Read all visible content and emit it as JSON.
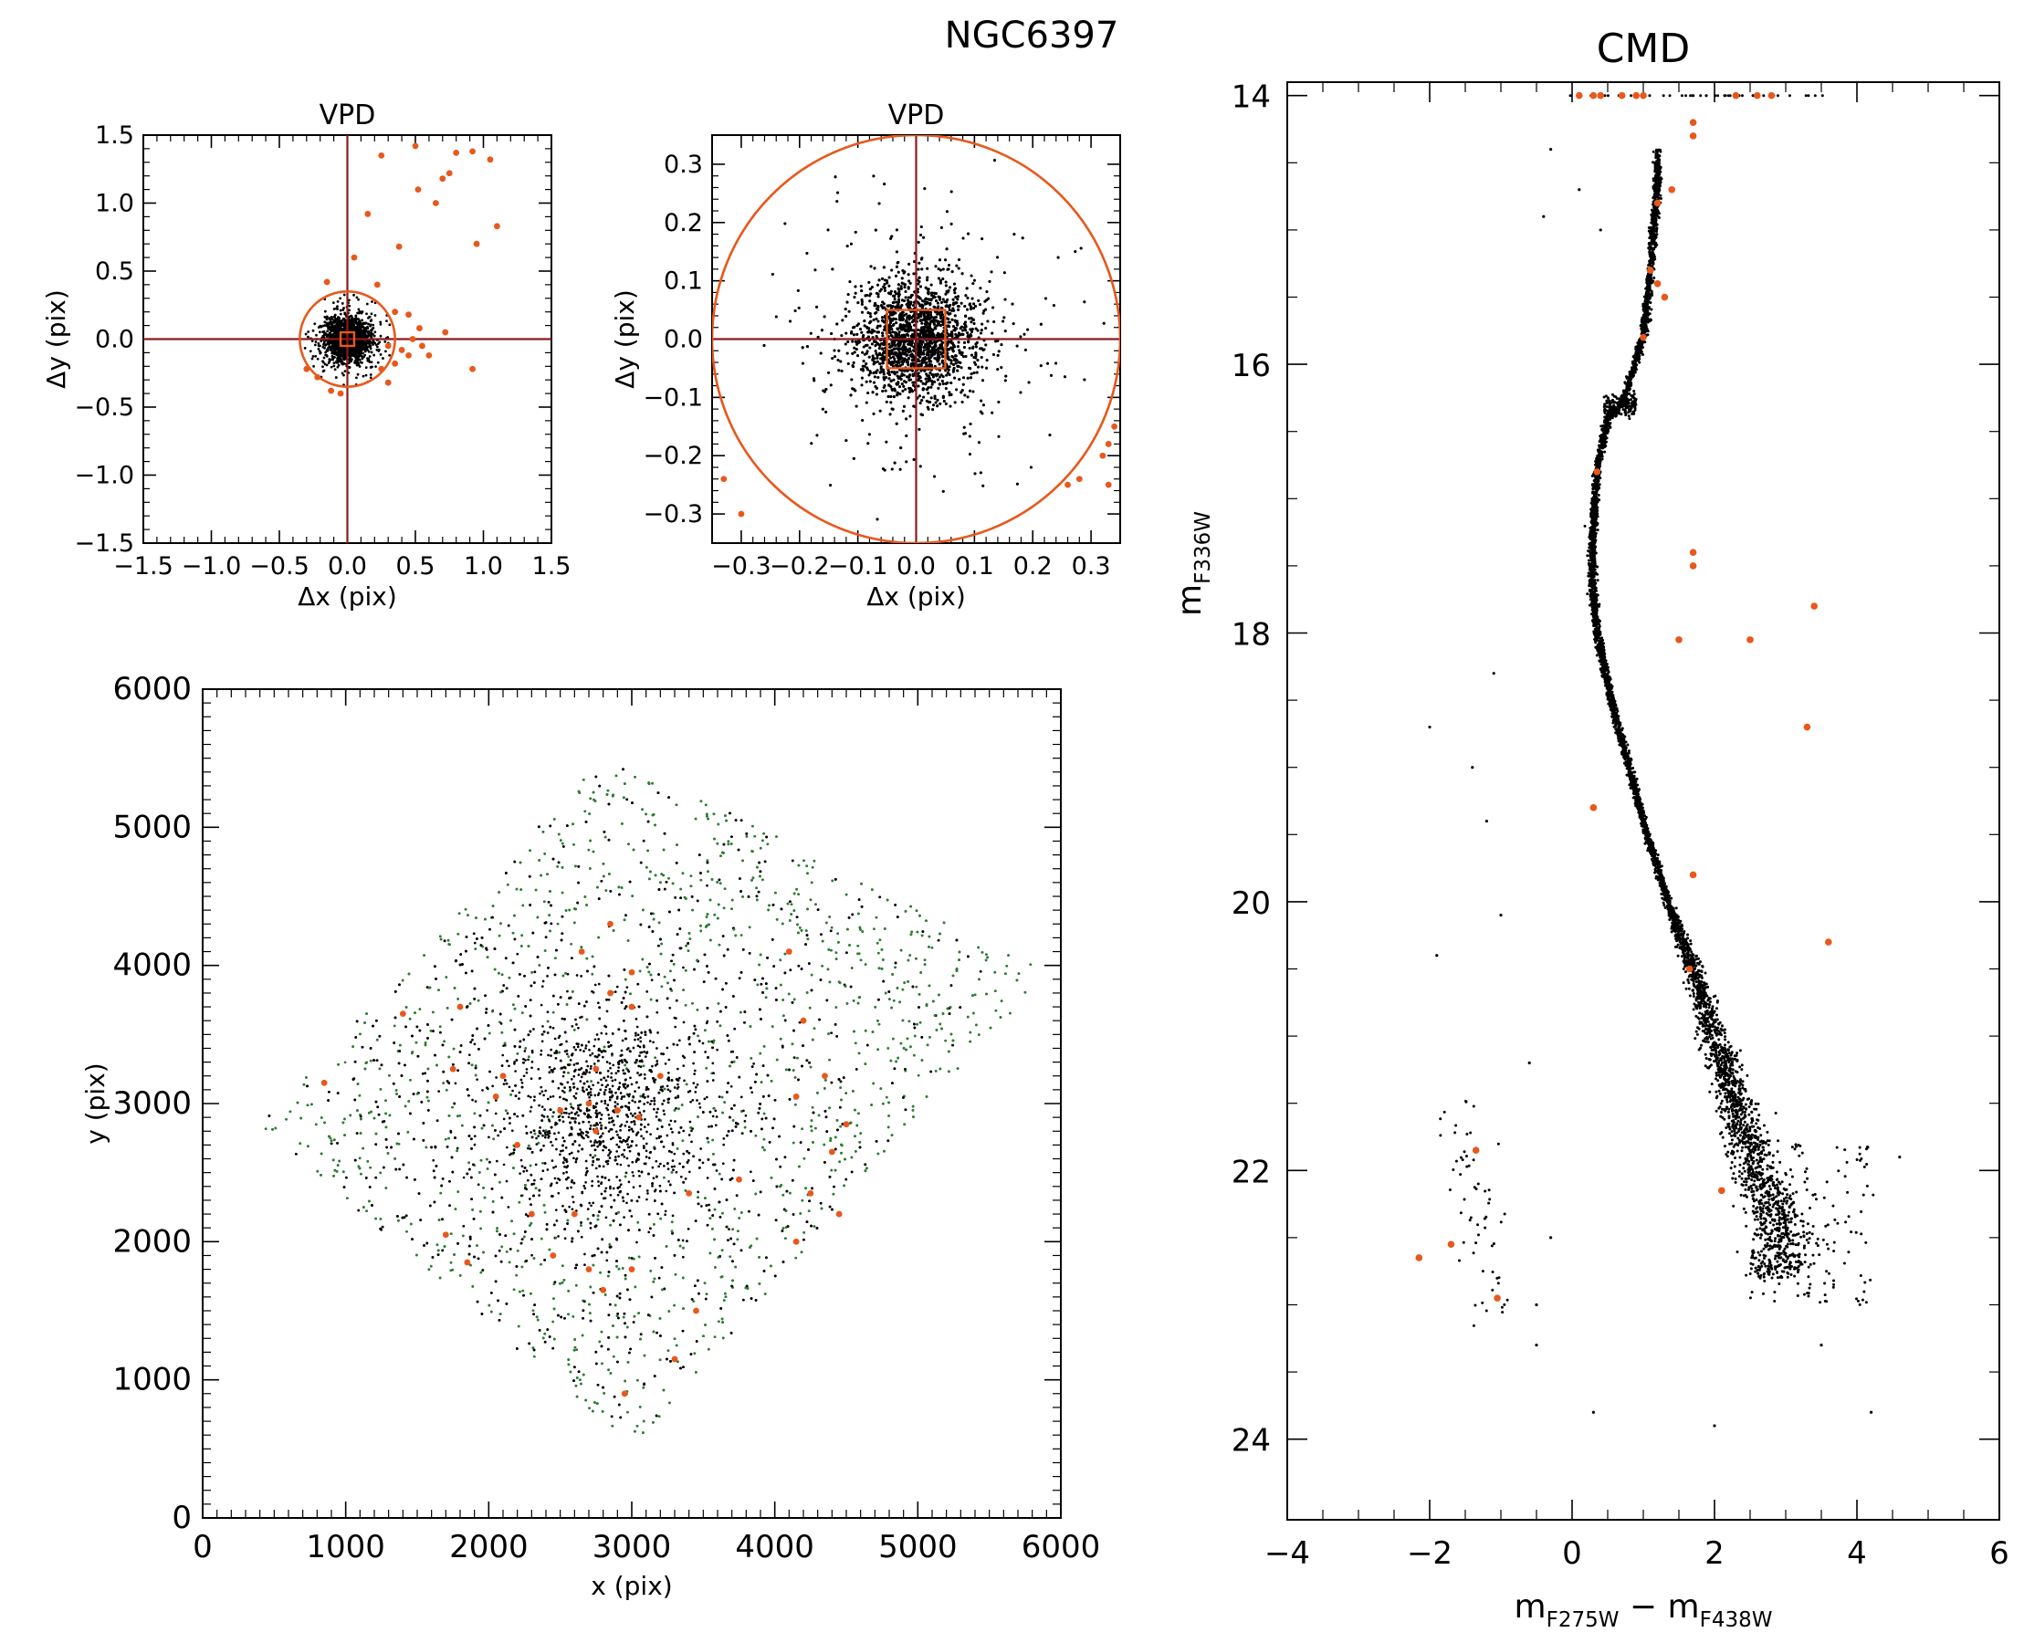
{
  "figure_title": "NGC6397",
  "colors": {
    "field": "#e8581c",
    "frame": "#000000",
    "cross": "#8b1a1a",
    "member": "#000000",
    "member_green": "#2e7d32"
  },
  "chart_data": [
    {
      "id": "vpd_wide",
      "type": "scatter",
      "title": "VPD",
      "xlabel": "Δx (pix)",
      "ylabel": "Δy (pix)",
      "xlim": [
        -1.5,
        1.5
      ],
      "ylim": [
        -1.5,
        1.5
      ],
      "xticks": [
        -1.5,
        -1.0,
        -0.5,
        0.0,
        0.5,
        1.0,
        1.5
      ],
      "yticks": [
        -1.5,
        -1.0,
        -0.5,
        0.0,
        0.5,
        1.0,
        1.5
      ],
      "xtick_labels": [
        "−1.5",
        "−1.0",
        "−0.5",
        "0.0",
        "0.5",
        "1.0",
        "1.5"
      ],
      "ytick_labels": [
        "−1.5",
        "−1.0",
        "−0.5",
        "0.0",
        "0.5",
        "1.0",
        "1.5"
      ],
      "selection_circle_radius": 0.35,
      "inner_box_halfwidth": 0.05,
      "cluster_core_sigma": 0.08,
      "field_stars": [
        [
          0.25,
          1.35
        ],
        [
          0.5,
          1.42
        ],
        [
          0.8,
          1.37
        ],
        [
          0.92,
          1.38
        ],
        [
          1.05,
          1.32
        ],
        [
          0.75,
          1.22
        ],
        [
          0.7,
          1.18
        ],
        [
          0.52,
          1.1
        ],
        [
          0.65,
          1.0
        ],
        [
          0.15,
          0.92
        ],
        [
          0.38,
          0.68
        ],
        [
          0.95,
          0.7
        ],
        [
          1.1,
          0.83
        ],
        [
          0.05,
          0.6
        ],
        [
          0.22,
          0.4
        ],
        [
          -0.15,
          0.42
        ],
        [
          0.35,
          0.2
        ],
        [
          0.45,
          0.18
        ],
        [
          0.53,
          0.08
        ],
        [
          0.72,
          0.05
        ],
        [
          0.48,
          0.0
        ],
        [
          0.55,
          -0.05
        ],
        [
          0.4,
          -0.08
        ],
        [
          0.3,
          -0.05
        ],
        [
          0.45,
          -0.12
        ],
        [
          0.35,
          -0.18
        ],
        [
          0.25,
          -0.22
        ],
        [
          0.6,
          -0.12
        ],
        [
          0.92,
          -0.22
        ],
        [
          -0.22,
          -0.28
        ],
        [
          -0.3,
          -0.22
        ],
        [
          -0.12,
          -0.38
        ],
        [
          -0.05,
          -0.4
        ],
        [
          0.3,
          -0.32
        ]
      ]
    },
    {
      "id": "vpd_zoom",
      "type": "scatter",
      "title": "VPD",
      "xlabel": "Δx (pix)",
      "ylabel": "Δy (pix)",
      "xlim": [
        -0.35,
        0.35
      ],
      "ylim": [
        -0.35,
        0.35
      ],
      "xticks": [
        -0.3,
        -0.2,
        -0.1,
        0.0,
        0.1,
        0.2,
        0.3
      ],
      "yticks": [
        -0.3,
        -0.2,
        -0.1,
        0.0,
        0.1,
        0.2,
        0.3
      ],
      "xtick_labels": [
        "−0.3",
        "−0.2",
        "−0.1",
        "0.0",
        "0.1",
        "0.2",
        "0.3"
      ],
      "ytick_labels": [
        "−0.3",
        "−0.2",
        "−0.1",
        "0.0",
        "0.1",
        "0.2",
        "0.3"
      ],
      "selection_circle_radius": 0.35,
      "inner_box_halfwidth": 0.05,
      "cluster_core_sigma": 0.05,
      "field_stars": [
        [
          -0.33,
          -0.24
        ],
        [
          -0.3,
          -0.3
        ],
        [
          0.26,
          -0.25
        ],
        [
          0.28,
          -0.24
        ],
        [
          0.33,
          -0.25
        ],
        [
          0.33,
          -0.18
        ],
        [
          0.34,
          -0.15
        ],
        [
          0.32,
          -0.2
        ]
      ]
    },
    {
      "id": "xy_map",
      "type": "scatter",
      "xlabel": "x (pix)",
      "ylabel": "y (pix)",
      "xlim": [
        0,
        6000
      ],
      "ylim": [
        0,
        6000
      ],
      "xticks": [
        0,
        1000,
        2000,
        3000,
        4000,
        5000,
        6000
      ],
      "yticks": [
        0,
        1000,
        2000,
        3000,
        4000,
        5000,
        6000
      ],
      "xtick_labels": [
        "0",
        "1000",
        "2000",
        "3000",
        "4000",
        "5000",
        "6000"
      ],
      "ytick_labels": [
        "0",
        "1000",
        "2000",
        "3000",
        "4000",
        "5000",
        "6000"
      ],
      "footprint": [
        [
          400,
          2850
        ],
        [
          2800,
          5500
        ],
        [
          3500,
          5200
        ],
        [
          5900,
          3950
        ],
        [
          3000,
          500
        ]
      ],
      "cluster_center": [
        2800,
        2950
      ],
      "field_stars": [
        [
          2650,
          4100
        ],
        [
          2850,
          4300
        ],
        [
          3000,
          3950
        ],
        [
          4100,
          4100
        ],
        [
          1400,
          3650
        ],
        [
          1800,
          3700
        ],
        [
          2850,
          3800
        ],
        [
          3000,
          3700
        ],
        [
          4200,
          3600
        ],
        [
          850,
          3150
        ],
        [
          1750,
          3250
        ],
        [
          2100,
          3200
        ],
        [
          2750,
          3250
        ],
        [
          3200,
          3200
        ],
        [
          4350,
          3200
        ],
        [
          2050,
          3050
        ],
        [
          2500,
          2950
        ],
        [
          2700,
          3000
        ],
        [
          2900,
          2950
        ],
        [
          3050,
          2900
        ],
        [
          4150,
          3050
        ],
        [
          4500,
          2850
        ],
        [
          2200,
          2700
        ],
        [
          2750,
          2800
        ],
        [
          4400,
          2650
        ],
        [
          3750,
          2450
        ],
        [
          3400,
          2350
        ],
        [
          4250,
          2350
        ],
        [
          2300,
          2200
        ],
        [
          2600,
          2200
        ],
        [
          4450,
          2200
        ],
        [
          1700,
          2050
        ],
        [
          1850,
          1850
        ],
        [
          4150,
          2000
        ],
        [
          2450,
          1900
        ],
        [
          2700,
          1800
        ],
        [
          3000,
          1800
        ],
        [
          2800,
          1650
        ],
        [
          3450,
          1500
        ],
        [
          2950,
          900
        ],
        [
          3300,
          1150
        ]
      ]
    },
    {
      "id": "cmd",
      "type": "scatter",
      "title": "CMD",
      "xlabel_main": "m",
      "xlabel_sub1": "F275W",
      "xlabel_mid": " − m",
      "xlabel_sub2": "F438W",
      "ylabel_main": "m",
      "ylabel_sub": "F336W",
      "xlim": [
        -4,
        6
      ],
      "ylim": [
        24.6,
        13.9
      ],
      "xticks": [
        -4,
        -2,
        0,
        2,
        4,
        6
      ],
      "yticks": [
        14,
        16,
        18,
        20,
        22,
        24
      ],
      "xtick_labels": [
        "−4",
        "−2",
        "0",
        "2",
        "4",
        "6"
      ],
      "ytick_labels": [
        "14",
        "16",
        "18",
        "20",
        "22",
        "24"
      ],
      "ridge_line": [
        [
          1.2,
          14.6
        ],
        [
          1.1,
          15.3
        ],
        [
          1.0,
          15.8
        ],
        [
          0.7,
          16.3
        ],
        [
          0.5,
          16.4
        ],
        [
          0.35,
          16.8
        ],
        [
          0.3,
          17.2
        ],
        [
          0.28,
          17.6
        ],
        [
          0.35,
          18.0
        ],
        [
          0.55,
          18.5
        ],
        [
          0.8,
          19.0
        ],
        [
          1.05,
          19.5
        ],
        [
          1.35,
          20.0
        ],
        [
          1.7,
          20.5
        ],
        [
          2.0,
          21.0
        ],
        [
          2.3,
          21.5
        ],
        [
          2.6,
          22.0
        ],
        [
          2.9,
          22.4
        ]
      ],
      "field_stars": [
        [
          0.1,
          14.0
        ],
        [
          0.3,
          14.0
        ],
        [
          0.4,
          14.0
        ],
        [
          0.7,
          14.0
        ],
        [
          0.9,
          14.0
        ],
        [
          1.0,
          14.0
        ],
        [
          2.3,
          14.0
        ],
        [
          2.6,
          14.0
        ],
        [
          2.8,
          14.0
        ],
        [
          1.7,
          14.2
        ],
        [
          1.7,
          14.3
        ],
        [
          1.4,
          14.7
        ],
        [
          1.2,
          14.8
        ],
        [
          1.1,
          15.3
        ],
        [
          1.2,
          15.4
        ],
        [
          1.3,
          15.5
        ],
        [
          1.0,
          15.8
        ],
        [
          0.35,
          16.8
        ],
        [
          1.7,
          17.4
        ],
        [
          1.7,
          17.5
        ],
        [
          3.4,
          17.8
        ],
        [
          1.5,
          18.05
        ],
        [
          2.5,
          18.05
        ],
        [
          3.3,
          18.7
        ],
        [
          0.3,
          19.3
        ],
        [
          1.7,
          19.8
        ],
        [
          1.65,
          20.5
        ],
        [
          3.6,
          20.3
        ],
        [
          -1.35,
          21.85
        ],
        [
          2.1,
          22.15
        ],
        [
          -1.7,
          22.55
        ],
        [
          -2.15,
          22.65
        ],
        [
          -1.05,
          22.95
        ]
      ],
      "rgb_stars": [
        [
          -0.3,
          14.4
        ],
        [
          -0.4,
          14.9
        ],
        [
          0.1,
          14.7
        ],
        [
          0.4,
          15.0
        ],
        [
          -1.1,
          18.3
        ],
        [
          -2.0,
          18.7
        ],
        [
          -1.2,
          19.4
        ],
        [
          -1.0,
          20.1
        ],
        [
          -1.9,
          20.4
        ],
        [
          -1.4,
          19.0
        ],
        [
          -0.6,
          21.2
        ],
        [
          -0.3,
          22.5
        ],
        [
          -0.5,
          23.0
        ],
        [
          -0.5,
          23.3
        ],
        [
          0.3,
          23.8
        ],
        [
          4.2,
          23.8
        ],
        [
          3.5,
          23.3
        ],
        [
          2.0,
          23.9
        ],
        [
          4.6,
          21.9
        ]
      ],
      "blue_sequence": [
        [
          -1.7,
          21.5
        ],
        [
          -1.0,
          23.1
        ]
      ]
    }
  ]
}
